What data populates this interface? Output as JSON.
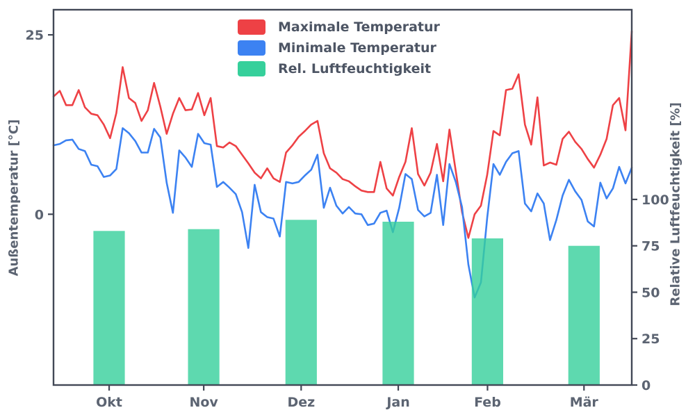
{
  "chart_data": {
    "type": "line+bar",
    "title": "",
    "left_axis": {
      "label": "Außentemperatur [°C]",
      "ticks": [
        0,
        25
      ],
      "range": [
        -23.8,
        28.5
      ]
    },
    "right_axis": {
      "label": "Relative Luftfeuchtigkeit [%]",
      "ticks": [
        0,
        25,
        50,
        75,
        100
      ],
      "range": [
        0,
        202.2
      ]
    },
    "x_axis": {
      "tick_labels": [
        "Okt",
        "Nov",
        "Dez",
        "Jan",
        "Feb",
        "Mär"
      ],
      "tick_days": [
        17.7,
        47.8,
        78.8,
        109.7,
        138.1,
        168.8
      ],
      "total_days": 184
    },
    "legend": [
      {
        "label": "Maximale Temperatur",
        "color": "#ee4145"
      },
      {
        "label": "Minimale Temperatur",
        "color": "#3c82f2"
      },
      {
        "label": "Rel. Luftfeuchtigkeit",
        "color": "#36d09b"
      }
    ],
    "series": {
      "day_step": 2,
      "max_temp": [
        16.4,
        17.2,
        15.2,
        15.2,
        17.3,
        14.9,
        14.0,
        13.8,
        12.5,
        10.6,
        14.1,
        20.5,
        16.2,
        15.5,
        13.0,
        14.5,
        18.3,
        15.0,
        11.2,
        14.0,
        16.2,
        14.5,
        14.6,
        16.9,
        13.8,
        16.2,
        9.5,
        9.3,
        10.0,
        9.5,
        8.3,
        7.1,
        5.8,
        5.0,
        6.4,
        5.0,
        4.5,
        8.6,
        9.6,
        10.8,
        11.6,
        12.5,
        13.0,
        8.5,
        6.4,
        5.8,
        4.9,
        4.6,
        3.9,
        3.3,
        3.1,
        3.1,
        7.3,
        3.6,
        2.6,
        5.2,
        7.3,
        12.0,
        5.6,
        4.0,
        5.8,
        9.8,
        4.6,
        11.8,
        6.0,
        0.3,
        -3.3,
        0.0,
        1.2,
        5.5,
        11.6,
        11.0,
        17.3,
        17.5,
        19.5,
        12.5,
        9.7,
        16.3,
        6.8,
        7.2,
        6.9,
        10.5,
        11.5,
        10.1,
        9.1,
        7.7,
        6.5,
        8.3,
        10.5,
        15.2,
        16.2,
        11.7,
        25.5
      ],
      "min_temp": [
        9.6,
        9.8,
        10.3,
        10.4,
        9.1,
        8.8,
        6.9,
        6.7,
        5.2,
        5.4,
        6.3,
        12.0,
        11.3,
        10.2,
        8.6,
        8.6,
        11.9,
        10.7,
        4.4,
        0.2,
        8.9,
        7.9,
        6.6,
        11.2,
        9.9,
        9.7,
        3.8,
        4.5,
        3.7,
        2.8,
        0.3,
        -4.7,
        4.1,
        0.3,
        -0.4,
        -0.6,
        -3.1,
        4.5,
        4.3,
        4.5,
        5.4,
        6.2,
        8.3,
        0.9,
        3.7,
        1.2,
        0.1,
        1.0,
        0.1,
        0.0,
        -1.5,
        -1.3,
        0.2,
        0.5,
        -2.5,
        0.9,
        5.6,
        4.9,
        0.6,
        -0.3,
        0.2,
        5.5,
        -1.5,
        7.0,
        4.5,
        1.0,
        -7.0,
        -11.6,
        -9.5,
        -0.5,
        7.0,
        5.5,
        7.3,
        8.5,
        8.8,
        1.5,
        0.4,
        2.9,
        1.5,
        -3.6,
        -0.8,
        2.6,
        4.8,
        3.2,
        2.0,
        -1.0,
        -1.7,
        4.4,
        2.2,
        3.6,
        6.6,
        4.3,
        6.5
      ]
    },
    "humidity_bars": {
      "values": [
        83,
        84,
        89,
        88,
        79,
        75
      ],
      "bar_width_days": 10,
      "color": "#36d09b",
      "opacity": 0.8
    },
    "style": {
      "max_temp_color": "#ee4145",
      "min_temp_color": "#3c82f2",
      "spine_color": "#424856",
      "tick_text_color": "#5c6472",
      "background": "#ffffff"
    }
  }
}
